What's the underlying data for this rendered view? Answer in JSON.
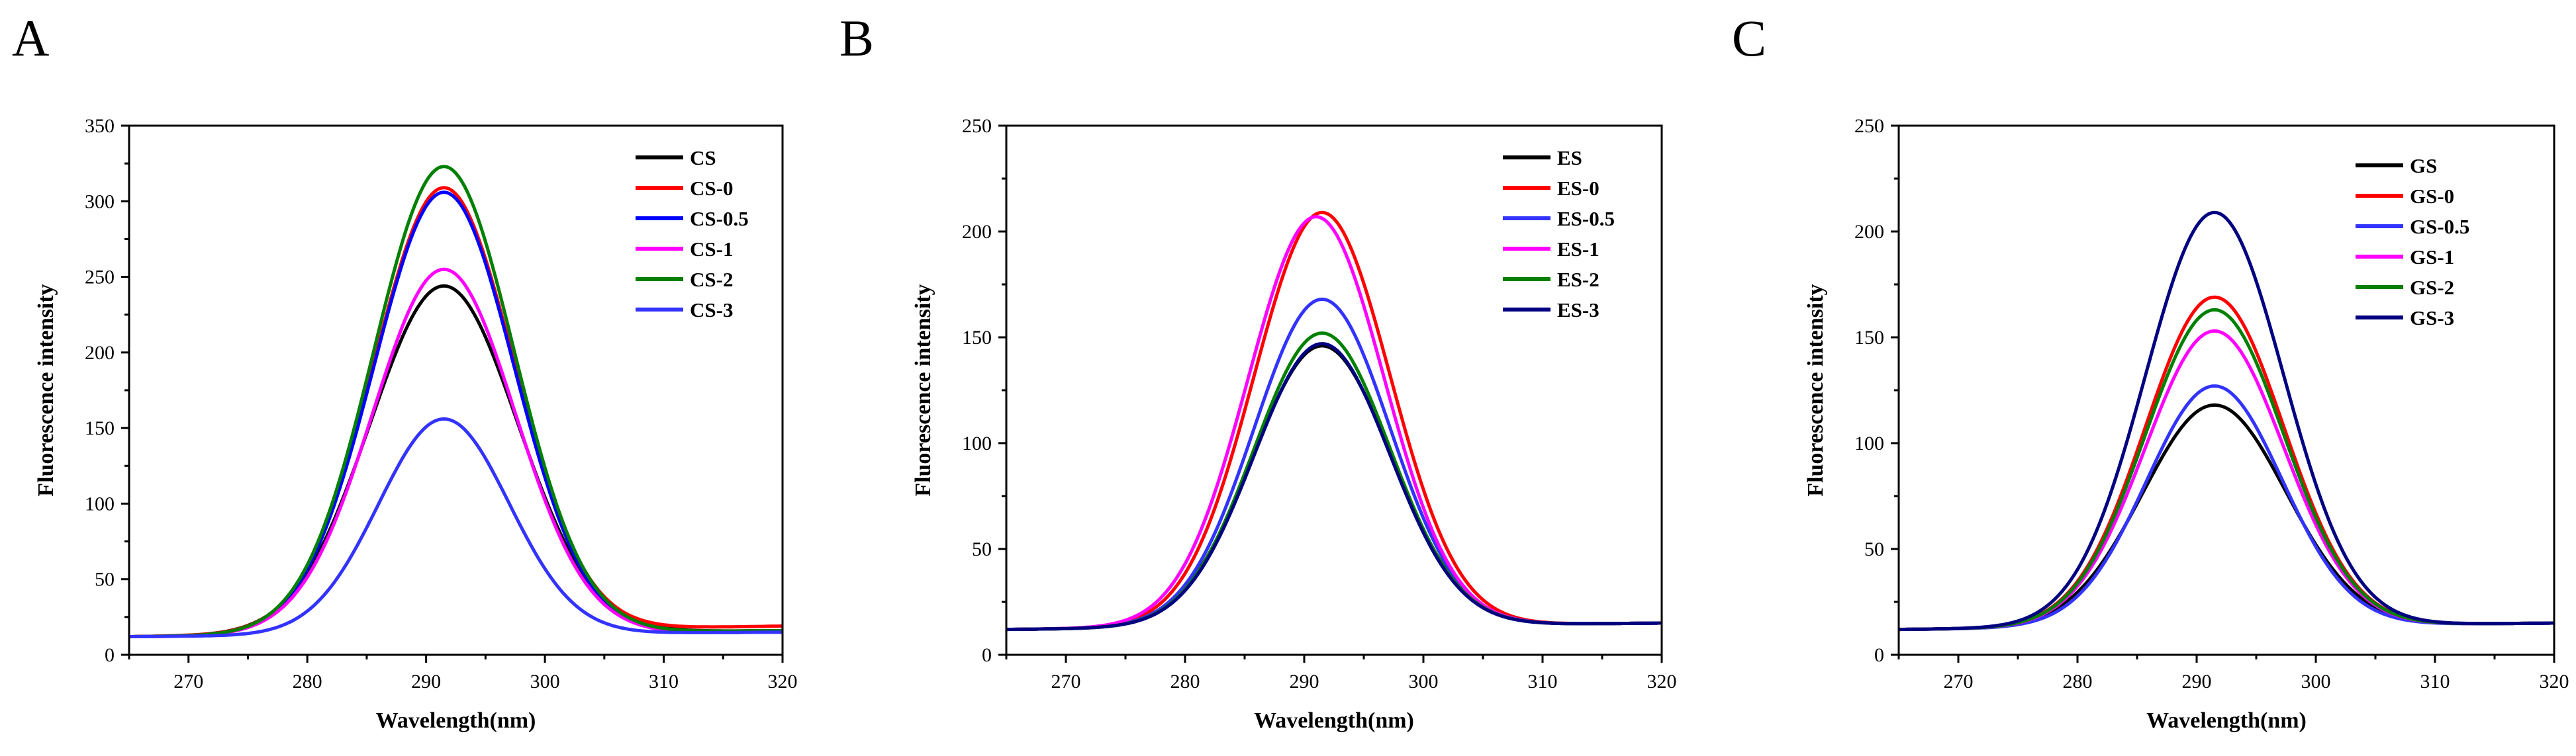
{
  "chart_data": [
    {
      "panel": "A",
      "type": "line",
      "title": "",
      "xlabel": "Wavelength(nm)",
      "ylabel": "Fluorescence intensity",
      "xlim": [
        265,
        320
      ],
      "ylim": [
        0,
        350
      ],
      "xticks": [
        270,
        280,
        290,
        300,
        310,
        320
      ],
      "yticks": [
        0,
        50,
        100,
        150,
        200,
        250,
        300,
        350
      ],
      "legend_position": "top-right",
      "series": [
        {
          "name": "CS",
          "color": "#000000",
          "peak_x": 291.5,
          "peak_y": 244,
          "baseline_left": 12,
          "baseline_right": 16,
          "width": 6.2
        },
        {
          "name": "CS-0",
          "color": "#ff0000",
          "peak_x": 291.5,
          "peak_y": 309,
          "baseline_left": 12,
          "baseline_right": 19,
          "width": 5.9
        },
        {
          "name": "CS-0.5",
          "color": "#0000ff",
          "peak_x": 291.5,
          "peak_y": 306,
          "baseline_left": 12,
          "baseline_right": 15,
          "width": 5.9
        },
        {
          "name": "CS-1",
          "color": "#ff00ff",
          "peak_x": 291.5,
          "peak_y": 255,
          "baseline_left": 12,
          "baseline_right": 15,
          "width": 6.0
        },
        {
          "name": "CS-2",
          "color": "#008000",
          "peak_x": 291.5,
          "peak_y": 323,
          "baseline_left": 12,
          "baseline_right": 16,
          "width": 5.9
        },
        {
          "name": "CS-3",
          "color": "#3333ff",
          "peak_x": 291.5,
          "peak_y": 156,
          "baseline_left": 12,
          "baseline_right": 15,
          "width": 5.5
        }
      ]
    },
    {
      "panel": "B",
      "type": "line",
      "title": "",
      "xlabel": "Wavelength(nm)",
      "ylabel": "Fluorescence intensity",
      "xlim": [
        265,
        320
      ],
      "ylim": [
        0,
        250
      ],
      "xticks": [
        270,
        280,
        290,
        300,
        310,
        320
      ],
      "yticks": [
        0,
        50,
        100,
        150,
        200,
        250
      ],
      "legend_position": "top-right",
      "series": [
        {
          "name": "ES",
          "color": "#000000",
          "peak_x": 291.5,
          "peak_y": 146,
          "baseline_left": 12,
          "baseline_right": 15,
          "width": 5.8
        },
        {
          "name": "ES-0",
          "color": "#ff0000",
          "peak_x": 291.5,
          "peak_y": 209,
          "baseline_left": 12,
          "baseline_right": 15,
          "width": 5.7
        },
        {
          "name": "ES-0.5",
          "color": "#3333ff",
          "peak_x": 291.5,
          "peak_y": 168,
          "baseline_left": 12,
          "baseline_right": 15,
          "width": 5.7
        },
        {
          "name": "ES-1",
          "color": "#ff00ff",
          "peak_x": 291.0,
          "peak_y": 207,
          "baseline_left": 12,
          "baseline_right": 15,
          "width": 5.7
        },
        {
          "name": "ES-2",
          "color": "#008000",
          "peak_x": 291.5,
          "peak_y": 152,
          "baseline_left": 12,
          "baseline_right": 15,
          "width": 5.7
        },
        {
          "name": "ES-3",
          "color": "#000080",
          "peak_x": 291.5,
          "peak_y": 147,
          "baseline_left": 12,
          "baseline_right": 15,
          "width": 5.7
        }
      ]
    },
    {
      "panel": "C",
      "type": "line",
      "title": "",
      "xlabel": "Wavelength(nm)",
      "ylabel": "Fluorescence intensity",
      "xlim": [
        265,
        320
      ],
      "ylim": [
        0,
        250
      ],
      "xticks": [
        270,
        280,
        290,
        300,
        310,
        320
      ],
      "yticks": [
        0,
        50,
        100,
        150,
        200,
        250
      ],
      "legend_position": "top-right",
      "series": [
        {
          "name": "GS",
          "color": "#000000",
          "peak_x": 291.5,
          "peak_y": 118,
          "baseline_left": 12,
          "baseline_right": 15,
          "width": 6.0
        },
        {
          "name": "GS-0",
          "color": "#ff0000",
          "peak_x": 291.5,
          "peak_y": 169,
          "baseline_left": 12,
          "baseline_right": 15,
          "width": 5.8
        },
        {
          "name": "GS-0.5",
          "color": "#3333ff",
          "peak_x": 291.5,
          "peak_y": 127,
          "baseline_left": 12,
          "baseline_right": 15,
          "width": 5.7
        },
        {
          "name": "GS-1",
          "color": "#ff00ff",
          "peak_x": 291.5,
          "peak_y": 153,
          "baseline_left": 12,
          "baseline_right": 15,
          "width": 5.8
        },
        {
          "name": "GS-2",
          "color": "#008000",
          "peak_x": 291.5,
          "peak_y": 163,
          "baseline_left": 12,
          "baseline_right": 15,
          "width": 5.8
        },
        {
          "name": "GS-3",
          "color": "#000080",
          "peak_x": 291.5,
          "peak_y": 209,
          "baseline_left": 12,
          "baseline_right": 15,
          "width": 5.8
        }
      ]
    }
  ]
}
